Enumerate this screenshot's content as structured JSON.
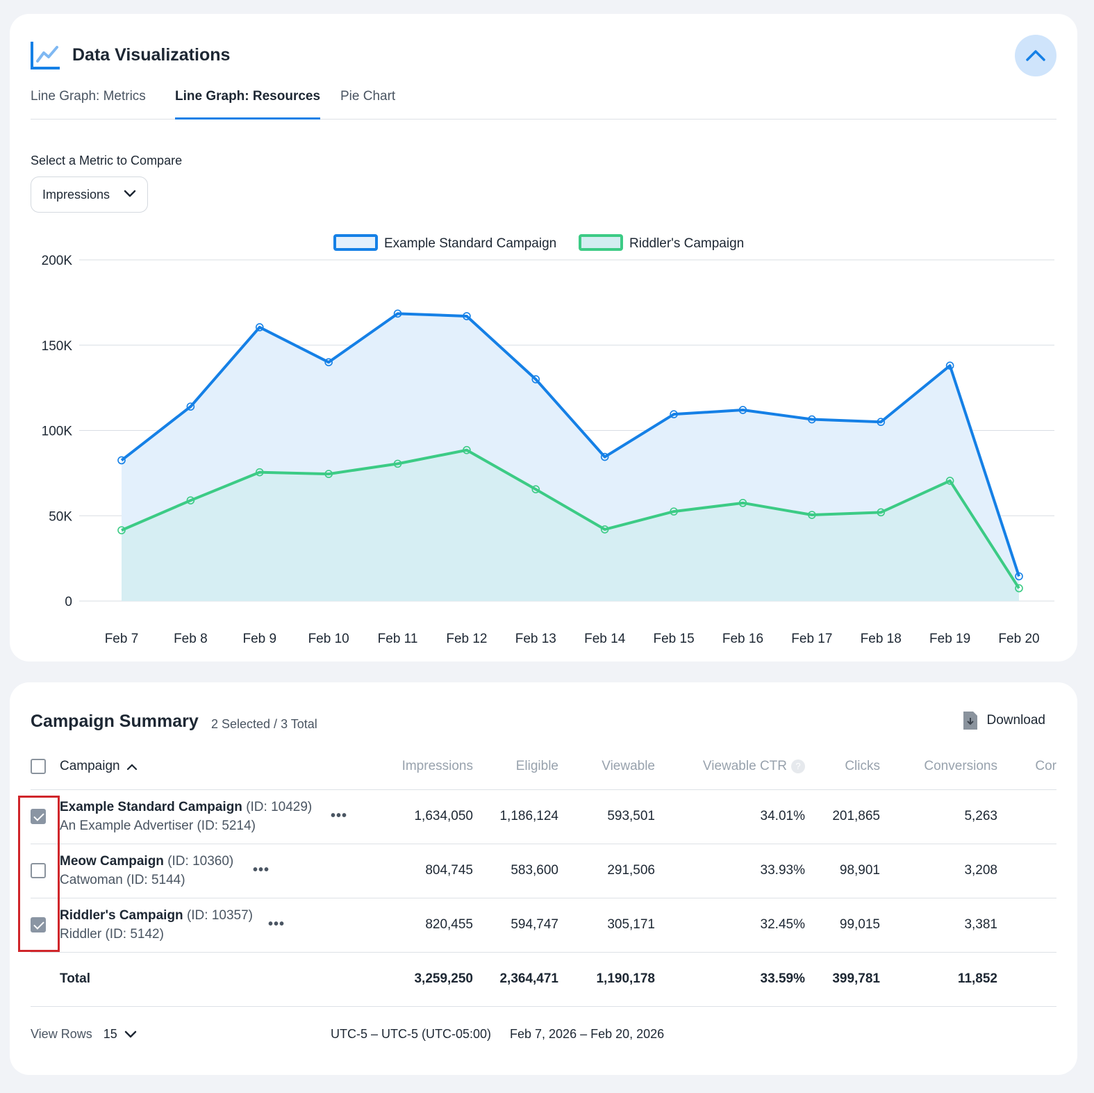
{
  "viz": {
    "title": "Data Visualizations",
    "tabs": [
      {
        "label": "Line Graph: Metrics",
        "active": false
      },
      {
        "label": "Line Graph: Resources",
        "active": true
      },
      {
        "label": "Pie Chart",
        "active": false
      }
    ],
    "metric_label": "Select a Metric to Compare",
    "metric_value": "Impressions"
  },
  "chart_data": {
    "type": "area",
    "title": "",
    "xlabel": "",
    "ylabel": "",
    "categories": [
      "Feb 7",
      "Feb 8",
      "Feb 9",
      "Feb 10",
      "Feb 11",
      "Feb 12",
      "Feb 13",
      "Feb 14",
      "Feb 15",
      "Feb 16",
      "Feb 17",
      "Feb 18",
      "Feb 19",
      "Feb 20"
    ],
    "ylim": [
      0,
      200000
    ],
    "yticks": [
      0,
      50000,
      100000,
      150000,
      200000
    ],
    "ytick_labels": [
      "0",
      "50K",
      "100K",
      "150K",
      "200K"
    ],
    "grid": true,
    "legend_position": "top-center",
    "series": [
      {
        "name": "Example Standard Campaign",
        "color": "#1580e6",
        "fill": "#e3f0fc",
        "values": [
          82500,
          114000,
          160500,
          140000,
          168500,
          167000,
          130000,
          84500,
          109500,
          112000,
          106500,
          105000,
          138000,
          14500
        ]
      },
      {
        "name": "Riddler's Campaign",
        "color": "#3ccb85",
        "fill": "#d3edf1",
        "values": [
          41500,
          59000,
          75500,
          74500,
          80500,
          88500,
          65500,
          42000,
          52500,
          57500,
          50500,
          52000,
          70500,
          7500
        ]
      }
    ]
  },
  "summary": {
    "title": "Campaign Summary",
    "selected_text": "2 Selected / 3 Total",
    "download_label": "Download",
    "columns": {
      "campaign": "Campaign",
      "impressions": "Impressions",
      "eligible": "Eligible",
      "viewable": "Viewable",
      "viewable_ctr": "Viewable CTR",
      "help": "?",
      "clicks": "Clicks",
      "conversions": "Conversions",
      "cut": "Cor"
    },
    "rows": [
      {
        "name": "Example Standard Campaign",
        "id": "(ID: 10429)",
        "advertiser": "An Example Advertiser (ID: 5214)",
        "checked": true,
        "impressions": "1,634,050",
        "eligible": "1,186,124",
        "viewable": "593,501",
        "viewable_ctr": "34.01%",
        "clicks": "201,865",
        "conversions": "5,263",
        "more": "•••"
      },
      {
        "name": "Meow Campaign",
        "id": "(ID: 10360)",
        "advertiser": "Catwoman (ID: 5144)",
        "checked": false,
        "impressions": "804,745",
        "eligible": "583,600",
        "viewable": "291,506",
        "viewable_ctr": "33.93%",
        "clicks": "98,901",
        "conversions": "3,208",
        "more": "•••"
      },
      {
        "name": "Riddler's Campaign",
        "id": "(ID: 10357)",
        "advertiser": "Riddler (ID: 5142)",
        "checked": true,
        "impressions": "820,455",
        "eligible": "594,747",
        "viewable": "305,171",
        "viewable_ctr": "32.45%",
        "clicks": "99,015",
        "conversions": "3,381",
        "more": "•••"
      }
    ],
    "total": {
      "label": "Total",
      "impressions": "3,259,250",
      "eligible": "2,364,471",
      "viewable": "1,190,178",
      "viewable_ctr": "33.59%",
      "clicks": "399,781",
      "conversions": "11,852"
    },
    "footer": {
      "view_rows_label": "View Rows",
      "view_rows_value": "15",
      "timezone": "UTC-5 – UTC-5 (UTC-05:00)",
      "date_range": "Feb 7, 2026 – Feb 20, 2026"
    }
  }
}
